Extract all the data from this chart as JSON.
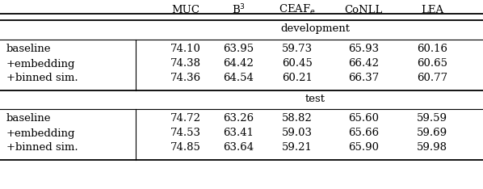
{
  "sections": [
    {
      "section_label": "development",
      "rows": [
        {
          "label": "baseline",
          "values": [
            74.1,
            63.95,
            59.73,
            65.93,
            60.16
          ]
        },
        {
          "label": "+embedding",
          "values": [
            74.38,
            64.42,
            60.45,
            66.42,
            60.65
          ]
        },
        {
          "label": "+binned sim.",
          "values": [
            74.36,
            64.54,
            60.21,
            66.37,
            60.77
          ]
        }
      ]
    },
    {
      "section_label": "test",
      "rows": [
        {
          "label": "baseline",
          "values": [
            74.72,
            63.26,
            58.82,
            65.6,
            59.59
          ]
        },
        {
          "label": "+embedding",
          "values": [
            74.53,
            63.41,
            59.03,
            65.66,
            59.69
          ]
        },
        {
          "label": "+binned sim.",
          "values": [
            74.85,
            63.64,
            59.21,
            65.9,
            59.98
          ]
        }
      ]
    }
  ],
  "col_headers": [
    "MUC",
    "B$^3$",
    "CEAF$_e$",
    "CoNLL",
    "LEA"
  ],
  "bg_color": "#ffffff",
  "text_color": "#000000",
  "font_size": 9.5
}
